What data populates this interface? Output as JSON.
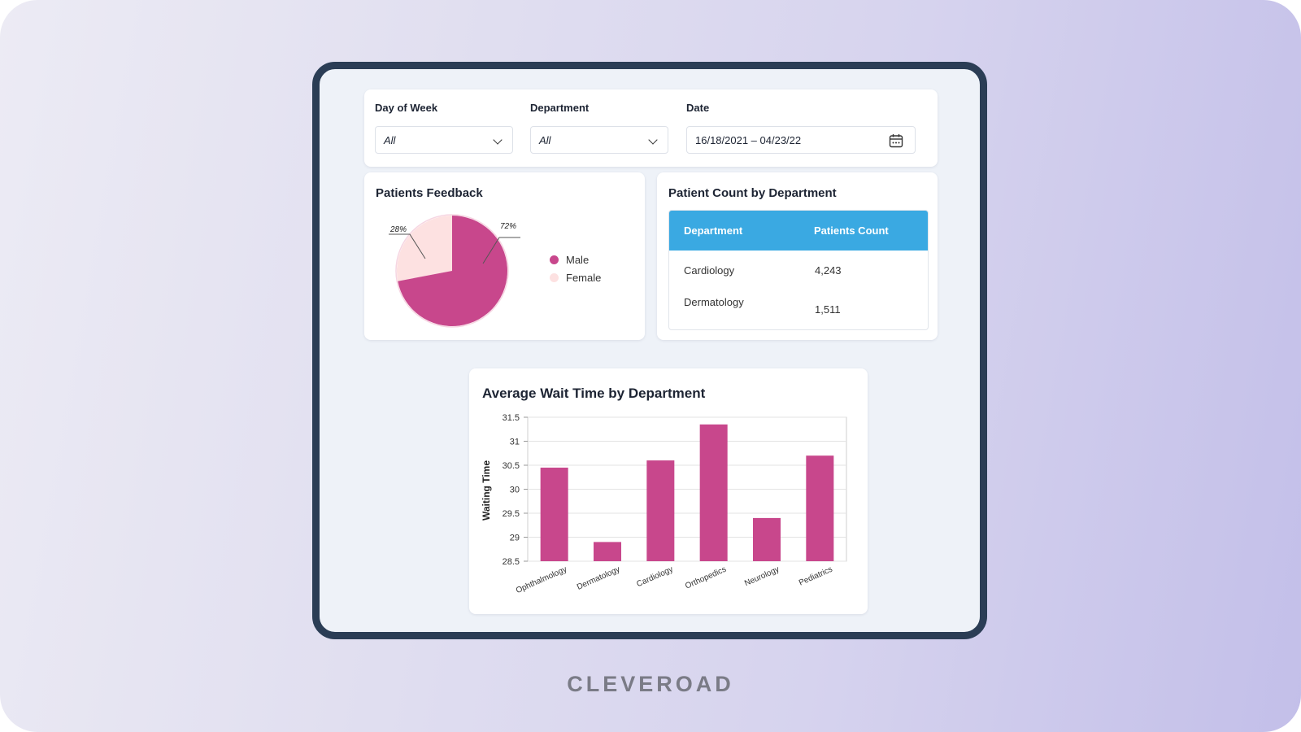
{
  "filters": {
    "day_of_week": {
      "label": "Day of Week",
      "value": "All"
    },
    "department": {
      "label": "Department",
      "value": "All"
    },
    "date": {
      "label": "Date",
      "value": "16/18/2021 – 04/23/22"
    }
  },
  "feedback": {
    "title": "Patients Feedback",
    "legend": [
      {
        "label": "Male",
        "color": "#c8478c"
      },
      {
        "label": "Female",
        "color": "#fde1e1"
      }
    ],
    "slice_labels": {
      "female": "28%",
      "male": "72%"
    },
    "chart_data": {
      "type": "pie",
      "categories": [
        "Male",
        "Female"
      ],
      "values": [
        72,
        28
      ],
      "colors": [
        "#c8478c",
        "#fde1e1"
      ]
    }
  },
  "patient_count": {
    "title": "Patient Count by Department",
    "columns": [
      "Department",
      "Patients Count"
    ],
    "rows": [
      [
        "Cardiology",
        "4,243"
      ],
      [
        "Dermatology",
        "1,511"
      ]
    ]
  },
  "wait_time": {
    "title": "Average Wait Time by Department",
    "chart_data": {
      "type": "bar",
      "ylabel": "Waiting Time",
      "categories": [
        "Ophthalmology",
        "Dermatology",
        "Cardiology",
        "Orthopedics",
        "Neurology",
        "Pediatrics"
      ],
      "values": [
        30.45,
        28.9,
        30.6,
        31.35,
        29.4,
        30.7
      ],
      "ylim": [
        28.5,
        31.5
      ],
      "yticks": [
        "28.5",
        "29",
        "29.5",
        "30",
        "30.5",
        "31",
        "31.5"
      ],
      "color": "#c8478c",
      "grid": true
    }
  },
  "brand": "CLEVEROAD"
}
